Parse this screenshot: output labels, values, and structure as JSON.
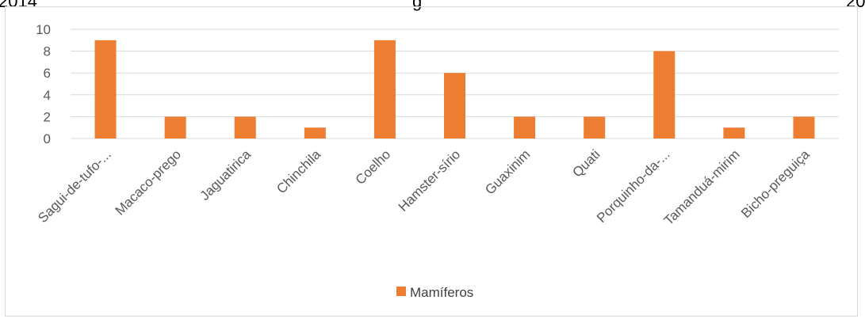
{
  "header_fragments": {
    "left": "2014",
    "middle": "g",
    "right": "20"
  },
  "chart_data": {
    "type": "bar",
    "categories": [
      "Sagui-de-tufo-...",
      "Macaco-prego",
      "Jaguatirica",
      "Chinchila",
      "Coelho",
      "Hamster-sírio",
      "Guaxinim",
      "Quati",
      "Porquinho-da-...",
      "Tamanduá-mirim",
      "Bicho-preguiça"
    ],
    "series": [
      {
        "name": "Mamíferos",
        "values": [
          9,
          2,
          2,
          1,
          9,
          6,
          2,
          2,
          8,
          1,
          2
        ],
        "color": "#ed7d31"
      }
    ],
    "ylim": [
      0,
      10
    ],
    "yticks": [
      0,
      2,
      4,
      6,
      8,
      10
    ],
    "grid": true,
    "gridColor": "#d9d9d9",
    "legend_position": "bottom"
  }
}
